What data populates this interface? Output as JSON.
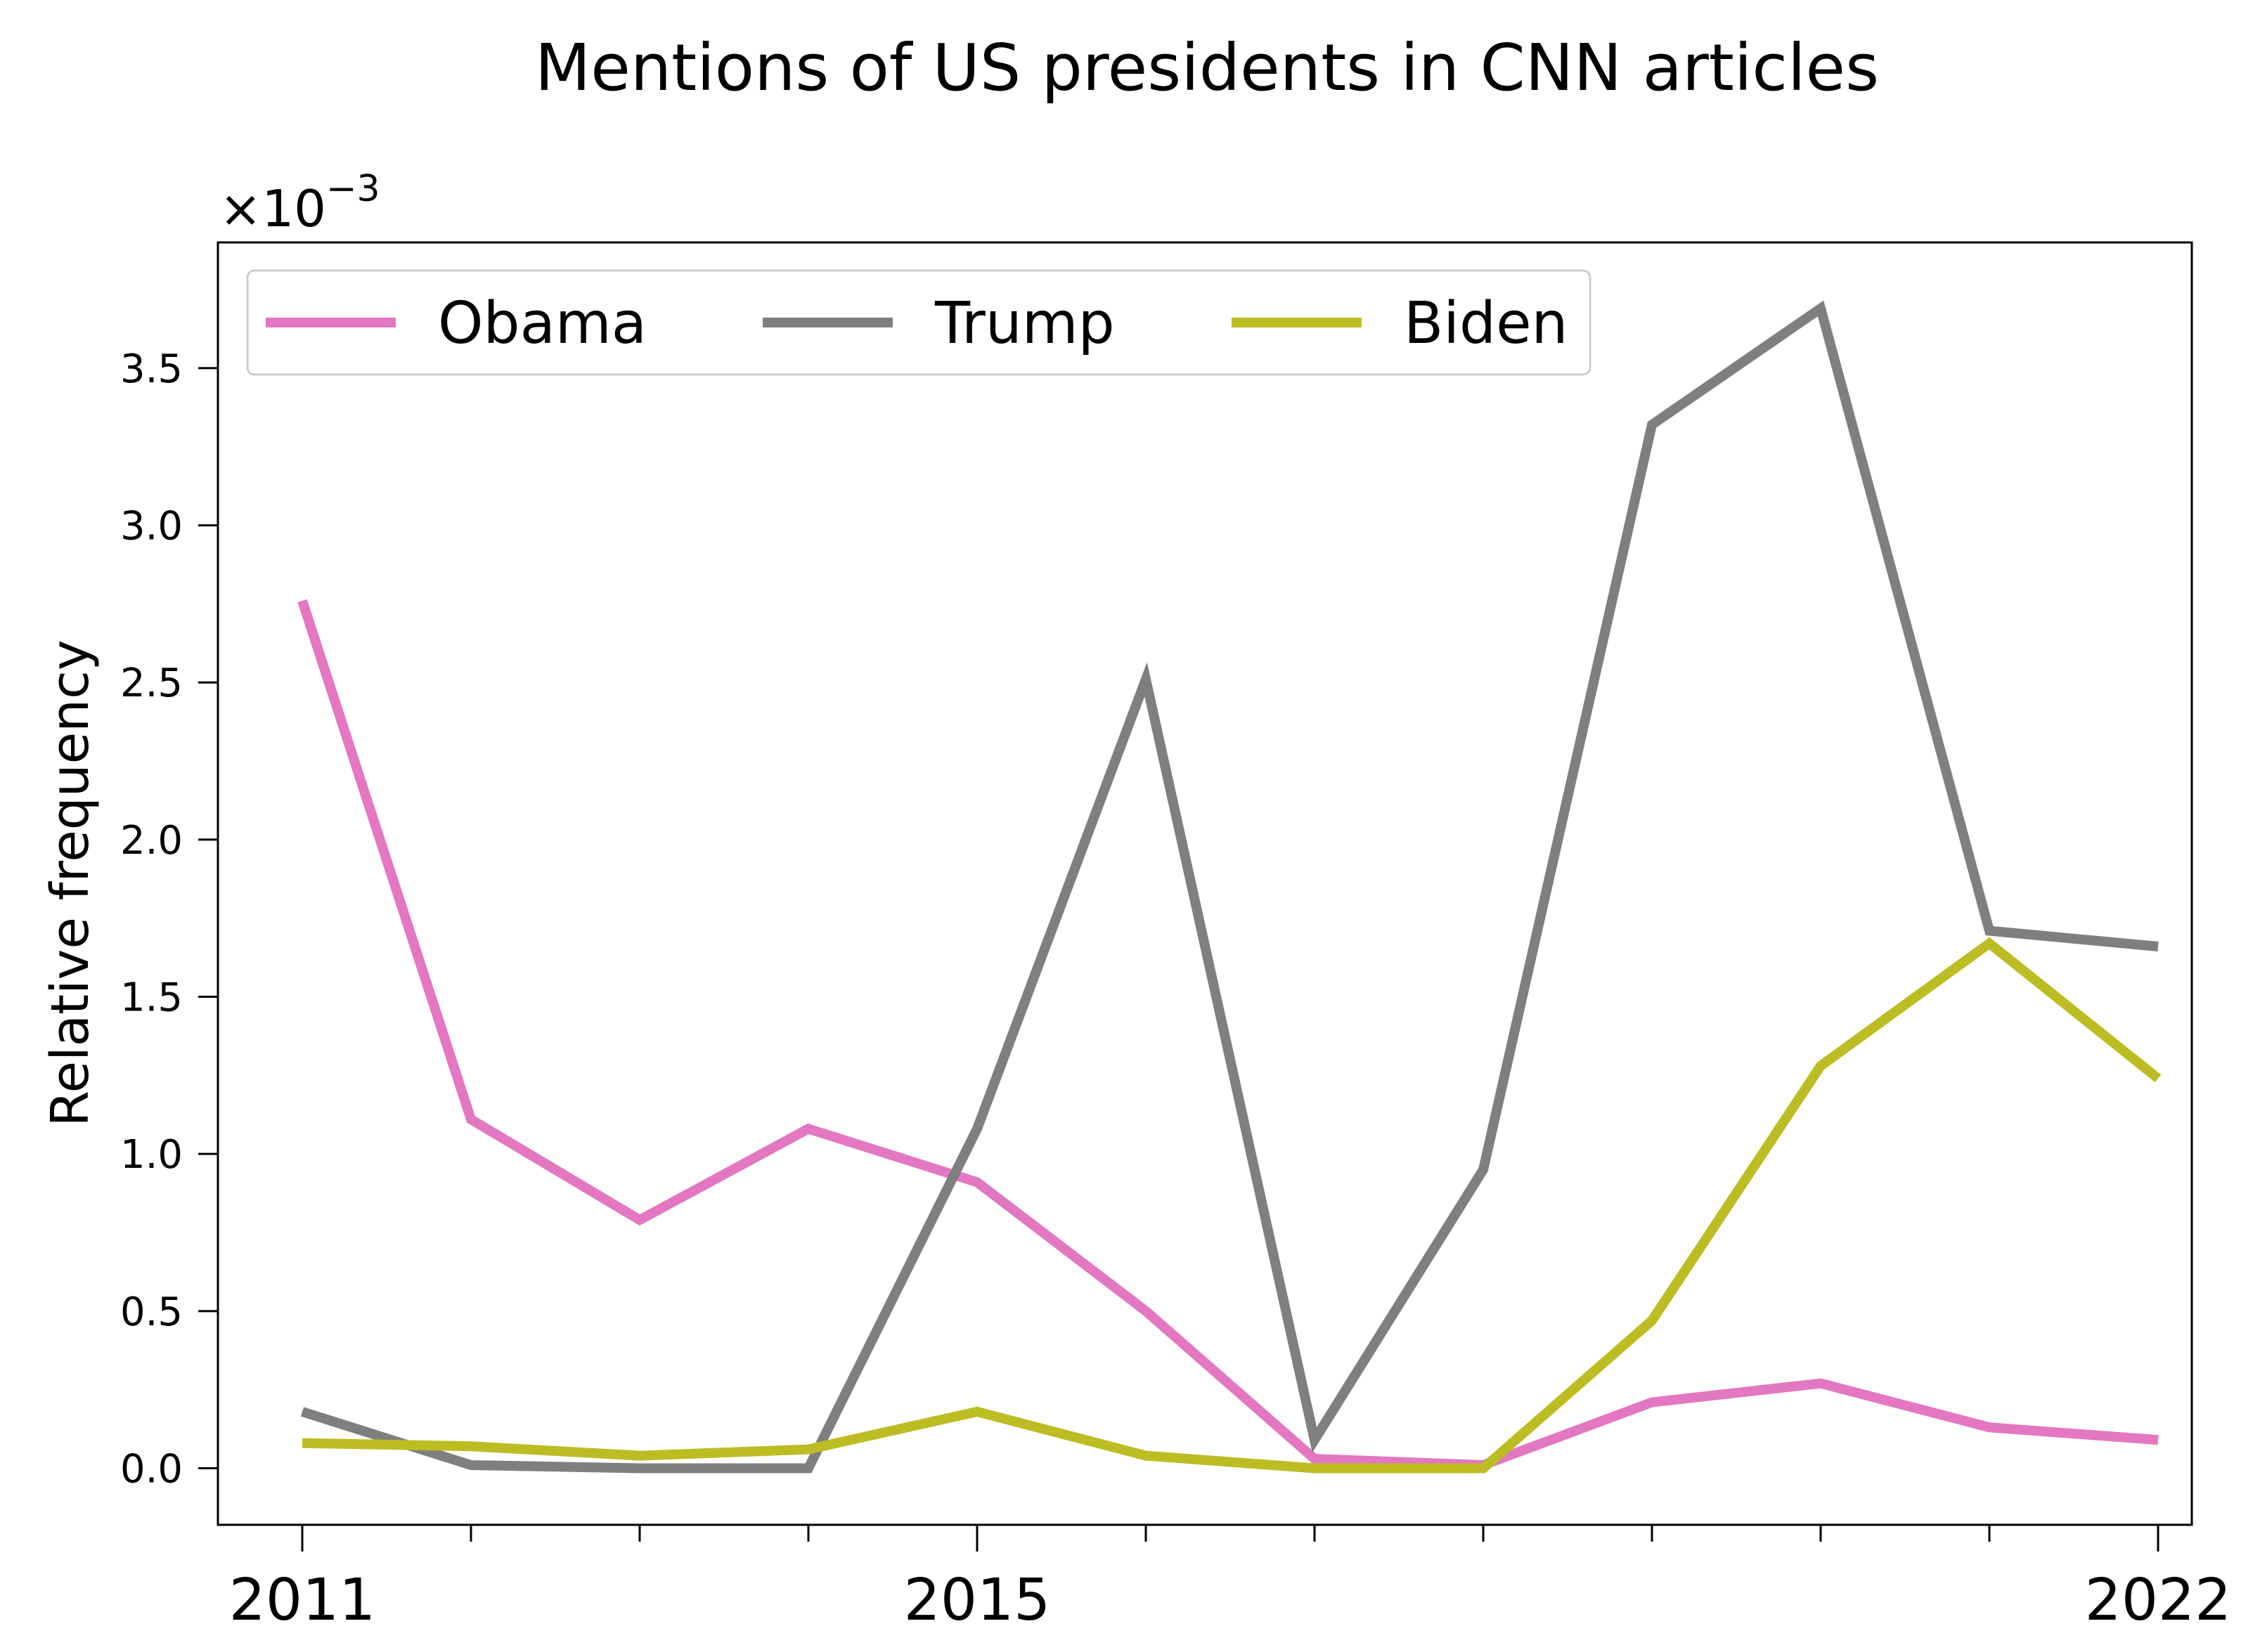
{
  "chart_data": {
    "type": "line",
    "title": "Mentions of US presidents in CNN articles",
    "ylabel": "Relative frequency",
    "xlabel": "",
    "y_scale_label": "×10",
    "y_scale_exponent": "−3",
    "x": [
      2011,
      2012,
      2013,
      2014,
      2015,
      2016,
      2017,
      2018,
      2019,
      2020,
      2021,
      2022
    ],
    "xlim": [
      2010.5,
      2022.2
    ],
    "ylim": [
      -0.18,
      3.9
    ],
    "x_ticks_major": [
      2011,
      2015,
      2022
    ],
    "x_tick_labels": [
      "2011",
      "2015",
      "2022"
    ],
    "x_ticks_minor": [
      2012,
      2013,
      2014,
      2016,
      2017,
      2018,
      2019,
      2020,
      2021
    ],
    "y_ticks": [
      0.0,
      0.5,
      1.0,
      1.5,
      2.0,
      2.5,
      3.0,
      3.5
    ],
    "y_tick_labels": [
      "0.0",
      "0.5",
      "1.0",
      "1.5",
      "2.0",
      "2.5",
      "3.0",
      "3.5"
    ],
    "grid": false,
    "legend_position": "top-left",
    "series": [
      {
        "name": "Obama",
        "color": "#e377c2",
        "values": [
          2.76,
          1.11,
          0.79,
          1.08,
          0.91,
          0.5,
          0.03,
          0.01,
          0.21,
          0.27,
          0.13,
          0.09
        ]
      },
      {
        "name": "Trump",
        "color": "#7f7f7f",
        "values": [
          0.18,
          0.01,
          0.0,
          0.0,
          1.08,
          2.51,
          0.09,
          0.95,
          3.32,
          3.69,
          1.71,
          1.66
        ]
      },
      {
        "name": "Biden",
        "color": "#bcbd22",
        "values": [
          0.08,
          0.07,
          0.04,
          0.06,
          0.18,
          0.04,
          0.0,
          0.0,
          0.47,
          1.28,
          1.67,
          1.24
        ]
      }
    ]
  }
}
